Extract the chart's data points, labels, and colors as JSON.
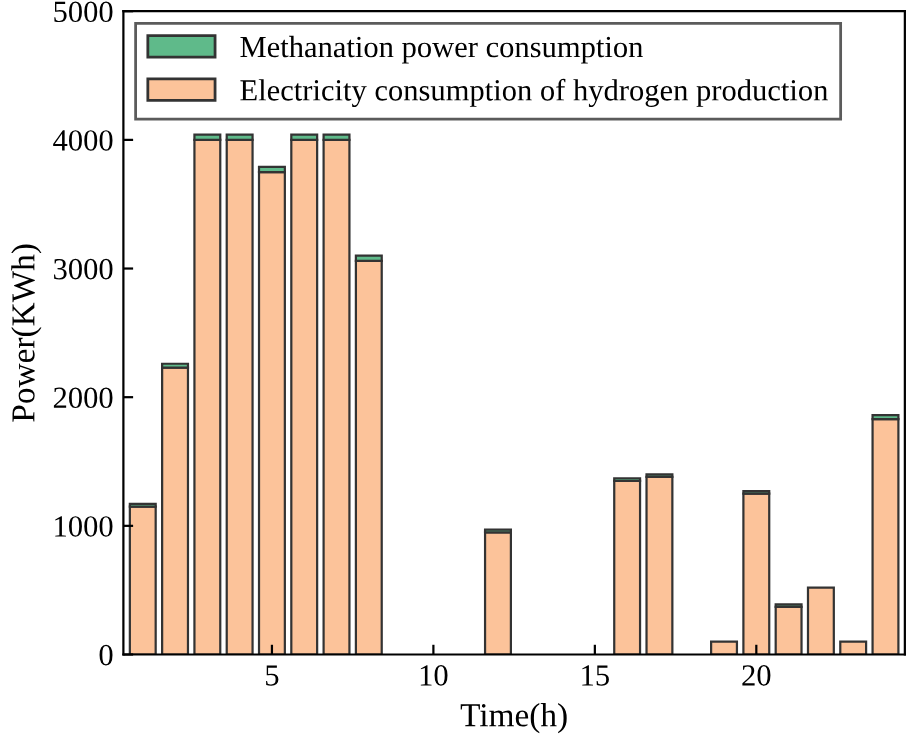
{
  "chart_data": {
    "type": "bar",
    "stacked": true,
    "xlabel": "Time(h)",
    "ylabel": "Power(KWh)",
    "x": [
      1,
      2,
      3,
      4,
      5,
      6,
      7,
      8,
      9,
      10,
      11,
      12,
      13,
      14,
      15,
      16,
      17,
      18,
      19,
      20,
      21,
      22,
      23,
      24
    ],
    "series": [
      {
        "name": "Electricity consumption of hydrogen production",
        "color": "#fcc39a",
        "values": [
          1150,
          2230,
          4000,
          4000,
          3750,
          4000,
          4000,
          3060,
          0,
          0,
          0,
          950,
          0,
          0,
          0,
          1350,
          1380,
          0,
          100,
          1250,
          370,
          520,
          100,
          1830
        ]
      },
      {
        "name": "Methanation power consumption",
        "color": "#5fba8a",
        "values": [
          20,
          30,
          40,
          40,
          40,
          40,
          40,
          40,
          0,
          0,
          0,
          20,
          0,
          0,
          0,
          20,
          20,
          0,
          0,
          20,
          20,
          0,
          0,
          30
        ]
      }
    ],
    "xlim": [
      0.4,
      24.6
    ],
    "xticks": [
      5,
      10,
      15,
      20
    ],
    "ylim": [
      0,
      5000
    ],
    "yticks": [
      0,
      1000,
      2000,
      3000,
      4000,
      5000
    ],
    "grid": false,
    "legend": "top left"
  }
}
